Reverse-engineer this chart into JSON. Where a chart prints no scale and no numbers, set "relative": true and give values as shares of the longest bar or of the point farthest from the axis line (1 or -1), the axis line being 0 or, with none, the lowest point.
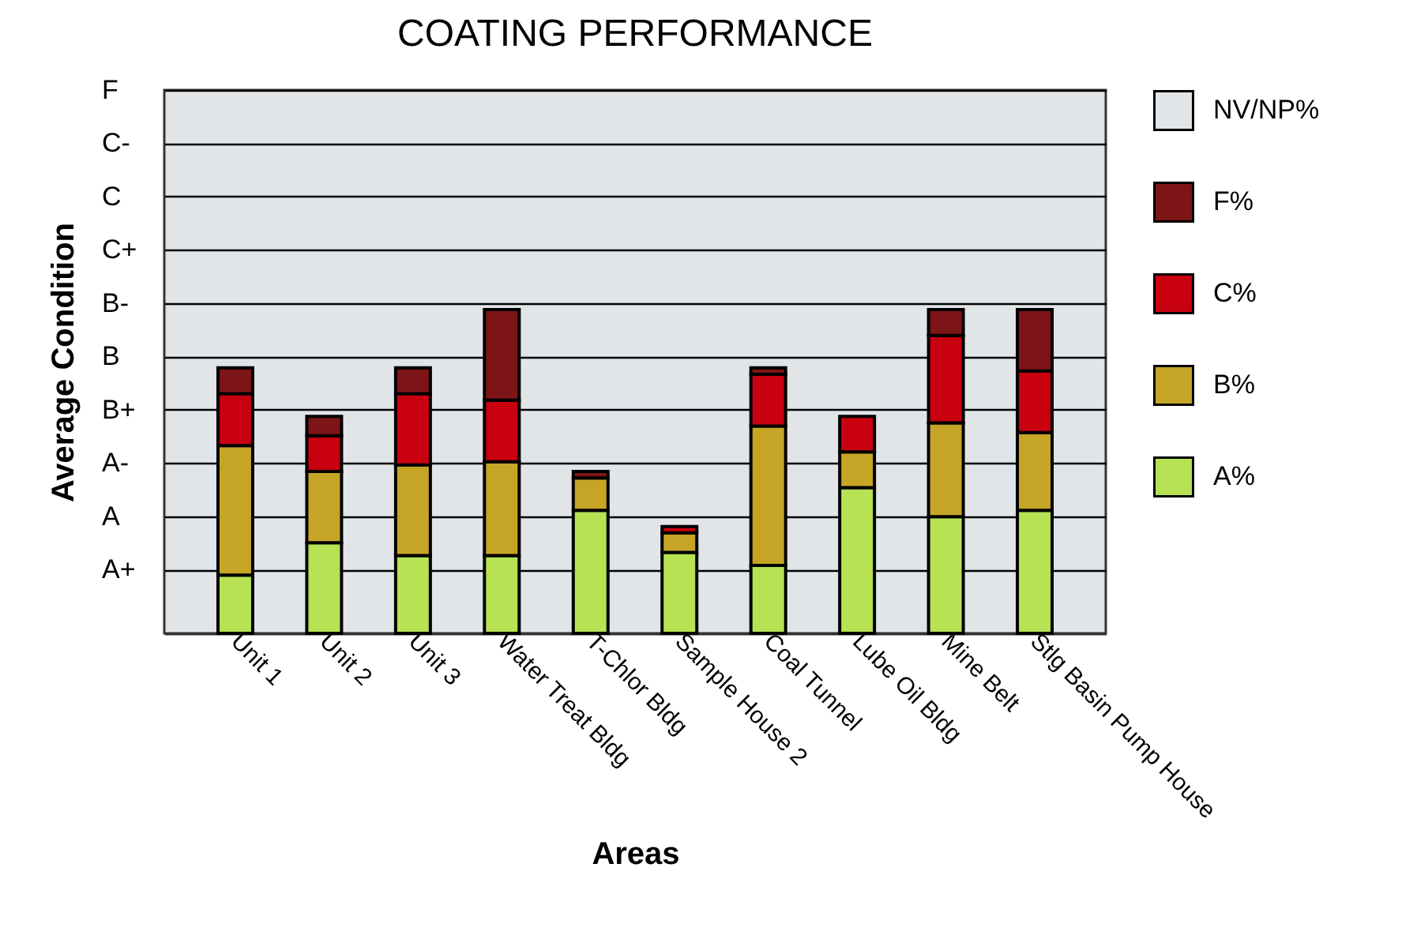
{
  "chart_data": {
    "type": "bar",
    "title": "COATING PERFORMANCE",
    "xlabel": "Areas",
    "ylabel": "Average Condition",
    "stacked": true,
    "relative": true,
    "grid": "y",
    "legend": "right",
    "categories": [
      "Unit 1",
      "Unit 2",
      "Unit 3",
      "Water Treat Bldg",
      "T-Chlor Bldg",
      "Sample House 2",
      "Coal Tunnel",
      "Lube Oil Bldg",
      "Mine Belt",
      "Stlg Basin Pump House"
    ],
    "annotations": [
      "A+",
      "A",
      "A-",
      "B+",
      "B",
      "B-",
      "C+",
      "C",
      "C-",
      "F"
    ],
    "series": [
      {
        "name": "A%",
        "color": "#b6e254",
        "values": [
          0.18,
          0.28,
          0.24,
          0.24,
          0.38,
          0.25,
          0.21,
          0.45,
          0.36,
          0.38
        ]
      },
      {
        "name": "B%",
        "color": "#c6a526",
        "values": [
          0.4,
          0.22,
          0.28,
          0.29,
          0.1,
          0.06,
          0.43,
          0.11,
          0.29,
          0.24
        ]
      },
      {
        "name": "C%",
        "color": "#c8000f",
        "values": [
          0.16,
          0.11,
          0.22,
          0.19,
          null,
          0.02,
          0.16,
          0.11,
          0.27,
          0.19
        ]
      },
      {
        "name": "F%",
        "color": "#7d1416",
        "values": [
          0.08,
          0.06,
          0.08,
          0.28,
          0.02,
          null,
          0.02,
          null,
          0.08,
          0.19
        ]
      },
      {
        "name": "NV/NP%",
        "color": "#e1e5e8",
        "values": [
          null,
          null,
          null,
          null,
          null,
          null,
          null,
          null,
          null,
          null
        ]
      }
    ]
  }
}
